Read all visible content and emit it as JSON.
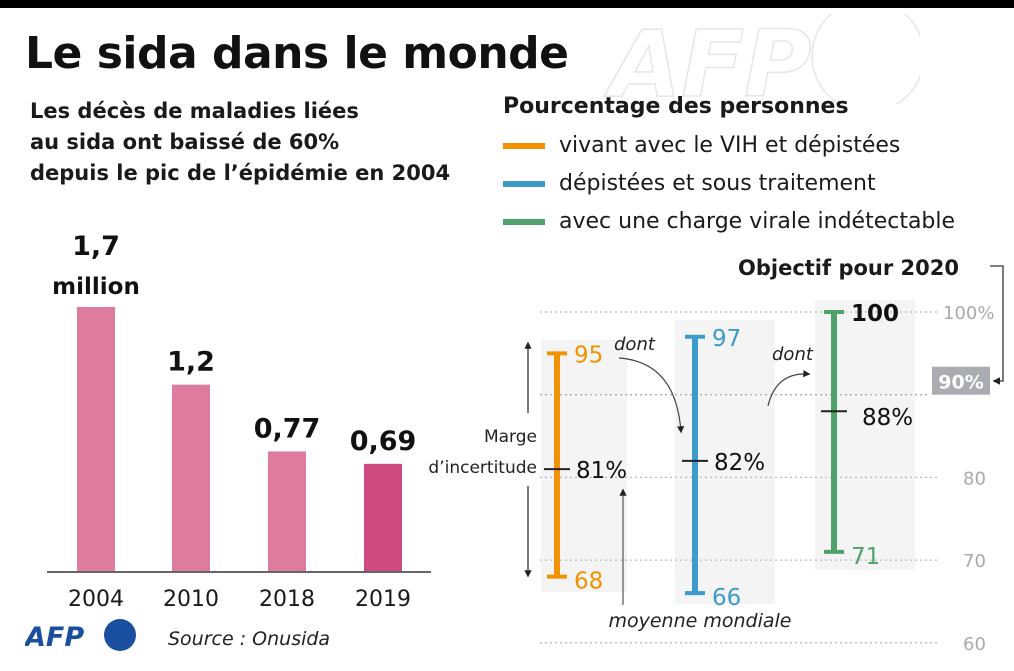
{
  "header": {
    "title": "Le sida dans le monde",
    "subtitle_lines": [
      "Les décès de maladies liées",
      "au sida ont baissé de 60%",
      "depuis le pic de l’épidémie en 2004"
    ]
  },
  "legend": {
    "title": "Pourcentage des personnes",
    "items": [
      {
        "label": "vivant avec le VIH et dépistées",
        "color": "#f39200"
      },
      {
        "label": "dépistées et sous traitement",
        "color": "#3d9bc9"
      },
      {
        "label": "avec une charge virale indétectable",
        "color": "#4fa36a"
      }
    ]
  },
  "footer": {
    "source": "Source : Onusida",
    "logo_text": "AFP",
    "logo_color": "#1a4fa0"
  },
  "watermark": {
    "text": "AFP"
  },
  "chart_data": [
    {
      "type": "bar",
      "title": "Décès de maladies liées au sida (millions)",
      "categories": [
        "2004",
        "2010",
        "2018",
        "2019"
      ],
      "values": [
        1.7,
        1.2,
        0.77,
        0.69
      ],
      "value_labels": [
        "1,7",
        "1,2",
        "0,77",
        "0,69"
      ],
      "unit_label": "million",
      "colors": [
        "#de7ca0",
        "#de7ca0",
        "#de7ca0",
        "#cf4a80"
      ],
      "ylim": [
        0,
        1.7
      ]
    },
    {
      "type": "errorbar",
      "title": "Pourcentage des personnes",
      "ylim": [
        60,
        100
      ],
      "yticks": [
        {
          "value": 100,
          "label": "100%"
        },
        {
          "value": 90,
          "label": "90%"
        },
        {
          "value": 80,
          "label": "80"
        },
        {
          "value": 70,
          "label": "70"
        },
        {
          "value": 60,
          "label": "60"
        }
      ],
      "target": {
        "value": 90,
        "label": "90%",
        "caption": "Objectif pour 2020",
        "color": "#a9adb1"
      },
      "series": [
        {
          "name": "vivant avec le VIH et dépistées",
          "color": "#f39200",
          "low": 68,
          "high": 95,
          "mean": 81,
          "low_label": "68",
          "high_label": "95",
          "mean_label": "81%"
        },
        {
          "name": "dépistées et sous traitement",
          "color": "#3d9bc9",
          "low": 66,
          "high": 97,
          "mean": 82,
          "low_label": "66",
          "high_label": "97",
          "mean_label": "82%"
        },
        {
          "name": "avec une charge virale indétectable",
          "color": "#4fa36a",
          "low": 71,
          "high": 100,
          "mean": 88,
          "low_label": "71",
          "high_label": "100",
          "mean_label": "88%"
        }
      ],
      "annotations": {
        "connector": "dont",
        "margin_label_lines": [
          "Marge",
          "d’incertitude"
        ],
        "mean_label": "moyenne mondiale"
      }
    }
  ]
}
